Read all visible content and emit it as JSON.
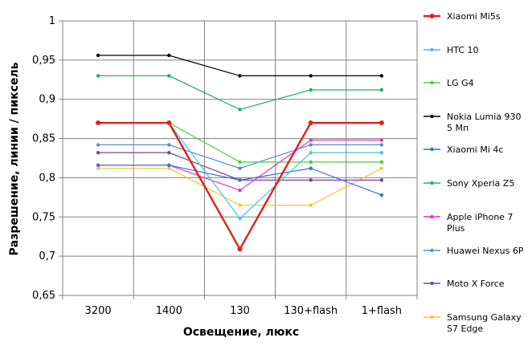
{
  "chart_data": {
    "type": "line",
    "title": "",
    "xlabel": "Освещение,  люкс",
    "ylabel": "Разрешение,  линии / пиксель",
    "categories": [
      "3200",
      "1400",
      "130",
      "130+flash",
      "1+flash"
    ],
    "ylim": [
      0.65,
      1
    ],
    "yticks": [
      "0,65",
      "0,7",
      "0,75",
      "0,8",
      "0,85",
      "0,9",
      "0,95",
      "1"
    ],
    "grid": true,
    "legend_position": "right",
    "series": [
      {
        "name": "Xiaomi Mi5s",
        "color": "#e0201b",
        "values": [
          0.87,
          0.87,
          0.709,
          0.87,
          0.87
        ]
      },
      {
        "name": "HTC 10",
        "color": "#3fc3e8",
        "values": [
          0.87,
          0.87,
          0.748,
          0.832,
          0.832
        ]
      },
      {
        "name": "LG G4",
        "color": "#4ccf3c",
        "values": [
          0.87,
          0.87,
          0.82,
          0.82,
          0.82
        ]
      },
      {
        "name": "Nokia Lumia 930 5 Мп",
        "color": "#000000",
        "values": [
          0.956,
          0.956,
          0.93,
          0.93,
          0.93
        ]
      },
      {
        "name": "Xiaomi Mi 4c",
        "color": "#3a6fd8",
        "values": [
          0.816,
          0.816,
          0.797,
          0.812,
          0.778
        ]
      },
      {
        "name": "Sony Xperia Z5",
        "color": "#1fae5f",
        "values": [
          0.93,
          0.93,
          0.887,
          0.912,
          0.912
        ]
      },
      {
        "name": "Apple iPhone 7 Plus",
        "color": "#e432c8",
        "values": [
          0.816,
          0.816,
          0.784,
          0.848,
          0.848
        ]
      },
      {
        "name": "Huawei Nexus 6P",
        "color": "#5b8cc8",
        "values": [
          0.842,
          0.842,
          0.812,
          0.842,
          0.842
        ]
      },
      {
        "name": "Moto X Force",
        "color": "#7a3fa0",
        "values": [
          0.832,
          0.832,
          0.797,
          0.797,
          0.797
        ]
      },
      {
        "name": "Samsung Galaxy S7 Edge",
        "color": "#f7c531",
        "values": [
          0.812,
          0.812,
          0.765,
          0.765,
          0.812
        ]
      }
    ]
  }
}
